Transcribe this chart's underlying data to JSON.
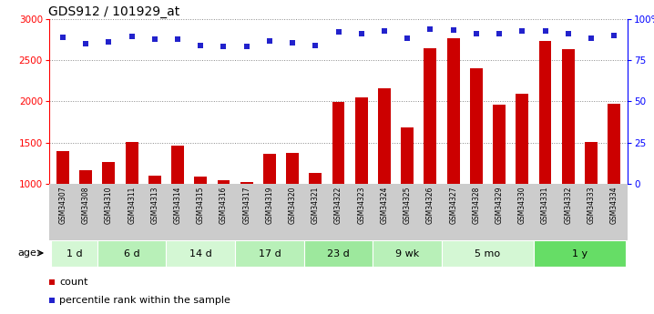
{
  "title": "GDS912 / 101929_at",
  "samples": [
    "GSM34307",
    "GSM34308",
    "GSM34310",
    "GSM34311",
    "GSM34313",
    "GSM34314",
    "GSM34315",
    "GSM34316",
    "GSM34317",
    "GSM34319",
    "GSM34320",
    "GSM34321",
    "GSM34322",
    "GSM34323",
    "GSM34324",
    "GSM34325",
    "GSM34326",
    "GSM34327",
    "GSM34328",
    "GSM34329",
    "GSM34330",
    "GSM34331",
    "GSM34332",
    "GSM34333",
    "GSM34334"
  ],
  "counts": [
    1400,
    1160,
    1260,
    1510,
    1100,
    1460,
    1090,
    1040,
    1020,
    1360,
    1370,
    1130,
    1990,
    2050,
    2160,
    1680,
    2640,
    2770,
    2400,
    1960,
    2090,
    2730,
    2630,
    1510,
    1970
  ],
  "percentile_values": [
    2780,
    2700,
    2720,
    2790,
    2750,
    2750,
    2680,
    2660,
    2660,
    2730,
    2710,
    2680,
    2840,
    2820,
    2850,
    2770,
    2870,
    2860,
    2820,
    2820,
    2850,
    2850,
    2820,
    2770,
    2800
  ],
  "age_groups": [
    {
      "label": "1 d",
      "start": 0,
      "end": 2,
      "color": "#d4f7d4"
    },
    {
      "label": "6 d",
      "start": 2,
      "end": 5,
      "color": "#b8f0b8"
    },
    {
      "label": "14 d",
      "start": 5,
      "end": 8,
      "color": "#d4f7d4"
    },
    {
      "label": "17 d",
      "start": 8,
      "end": 11,
      "color": "#b8f0b8"
    },
    {
      "label": "23 d",
      "start": 11,
      "end": 14,
      "color": "#9de89d"
    },
    {
      "label": "9 wk",
      "start": 14,
      "end": 17,
      "color": "#b8f0b8"
    },
    {
      "label": "5 mo",
      "start": 17,
      "end": 21,
      "color": "#d4f7d4"
    },
    {
      "label": "1 y",
      "start": 21,
      "end": 25,
      "color": "#66dd66"
    }
  ],
  "bar_color": "#cc0000",
  "dot_color": "#2222cc",
  "ylim_left": [
    1000,
    3000
  ],
  "yticks_left": [
    1000,
    1500,
    2000,
    2500,
    3000
  ],
  "yticks_right_labels": [
    "0",
    "25",
    "50",
    "75",
    "100%"
  ],
  "bg_color": "#ffffff",
  "grid_color": "#888888",
  "title_fontsize": 10,
  "tick_fontsize": 7.5,
  "sample_fontsize": 5.5,
  "age_fontsize": 8,
  "legend_fontsize": 8
}
